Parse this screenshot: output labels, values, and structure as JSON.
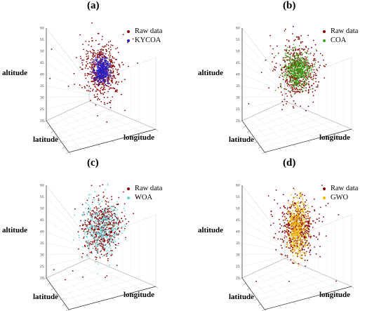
{
  "panels": [
    {
      "title": "(a)",
      "legend": [
        {
          "label": "Raw data",
          "color": "#8b0000"
        },
        {
          "label": "KYCOA",
          "color": "#2a1fbf"
        }
      ]
    },
    {
      "title": "(b)",
      "legend": [
        {
          "label": "Raw data",
          "color": "#8b0000"
        },
        {
          "label": "COA",
          "color": "#3aa31a"
        }
      ]
    },
    {
      "title": "(c)",
      "legend": [
        {
          "label": "Raw data",
          "color": "#8b0000"
        },
        {
          "label": "WOA",
          "color": "#5fd0d8"
        }
      ]
    },
    {
      "title": "(d)",
      "legend": [
        {
          "label": "Raw data",
          "color": "#8b0000"
        },
        {
          "label": "GWO",
          "color": "#f0b400"
        }
      ]
    }
  ],
  "axes": {
    "z_label": "altitude",
    "y_label": "latitude",
    "x_label": "longitude"
  },
  "chart_data": [
    {
      "type": "scatter",
      "title": "(a)",
      "zlabel": "altitude",
      "xlabel": "longitude",
      "ylabel": "latitude",
      "zlim": [
        20,
        60
      ],
      "zticks": [
        20,
        25,
        30,
        35,
        40,
        45,
        50,
        55,
        60
      ],
      "grid": true,
      "legend_position": "top-right",
      "series": [
        {
          "name": "Raw data",
          "color": "#8b0000",
          "spread": "wide"
        },
        {
          "name": "KYCOA",
          "color": "#2a1fbf",
          "spread": "tight"
        }
      ]
    },
    {
      "type": "scatter",
      "title": "(b)",
      "zlabel": "altitude",
      "xlabel": "longitude",
      "ylabel": "latitude",
      "zlim": [
        20,
        60
      ],
      "zticks": [
        20,
        25,
        30,
        35,
        40,
        45,
        50,
        55,
        60
      ],
      "grid": true,
      "legend_position": "top-right",
      "series": [
        {
          "name": "Raw data",
          "color": "#8b0000",
          "spread": "wide"
        },
        {
          "name": "COA",
          "color": "#3aa31a",
          "spread": "medium"
        }
      ]
    },
    {
      "type": "scatter",
      "title": "(c)",
      "zlabel": "altitude",
      "xlabel": "longitude",
      "ylabel": "latitude",
      "zlim": [
        20,
        60
      ],
      "zticks": [
        20,
        25,
        30,
        35,
        40,
        45,
        50,
        55,
        60
      ],
      "grid": true,
      "legend_position": "top-right",
      "series": [
        {
          "name": "Raw data",
          "color": "#8b0000",
          "spread": "wide"
        },
        {
          "name": "WOA",
          "color": "#5fd0d8",
          "spread": "wide"
        }
      ]
    },
    {
      "type": "scatter",
      "title": "(d)",
      "zlabel": "altitude",
      "xlabel": "longitude",
      "ylabel": "latitude",
      "zlim": [
        20,
        60
      ],
      "zticks": [
        20,
        25,
        30,
        35,
        40,
        45,
        50,
        55,
        60
      ],
      "grid": true,
      "legend_position": "top-right",
      "series": [
        {
          "name": "Raw data",
          "color": "#8b0000",
          "spread": "wide"
        },
        {
          "name": "GWO",
          "color": "#f0b400",
          "spread": "narrow-vertical"
        }
      ]
    }
  ]
}
